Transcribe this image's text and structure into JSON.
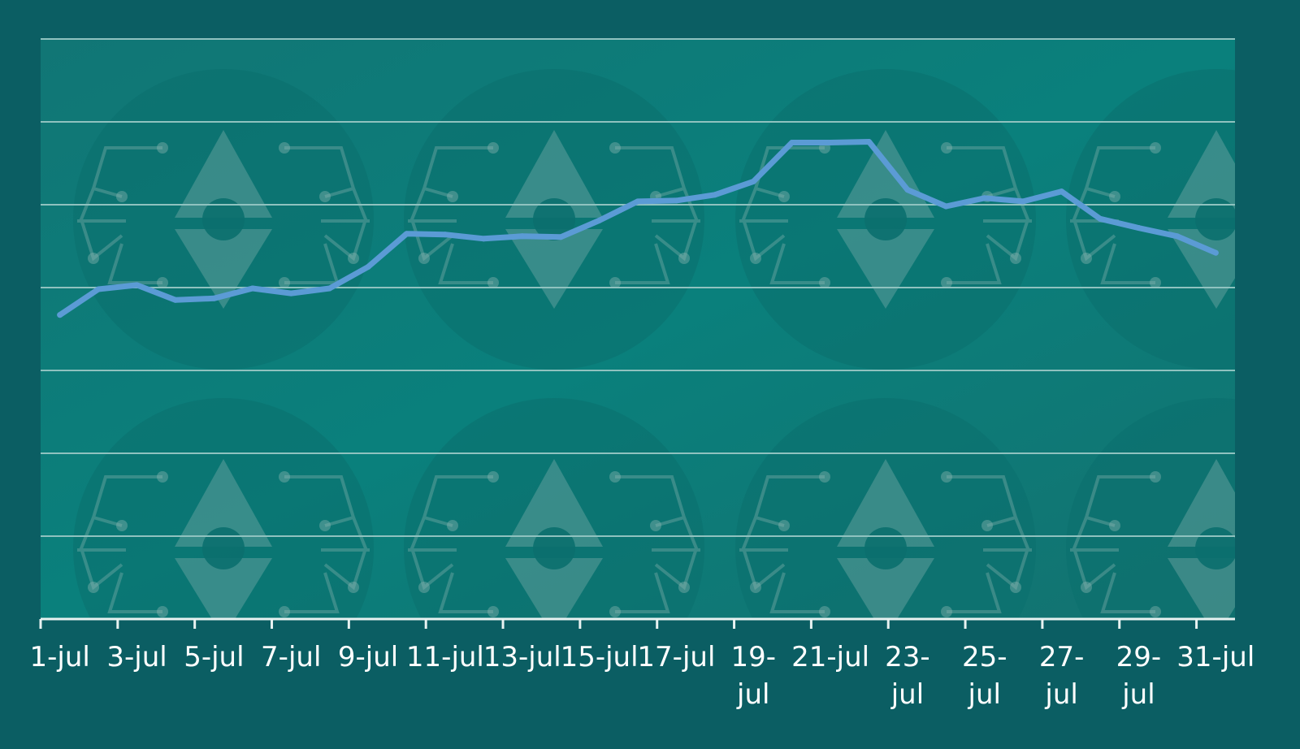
{
  "colors": {
    "frame": "#0b5e63",
    "plot_bg": "#0d7b7a",
    "gridline": "#8fc2bf",
    "axis": "#e8f2f1",
    "line": "#5b9bd5",
    "watermark": "#8fb8b4"
  },
  "watermark": {
    "icon": "gear-diamond-logo-icon"
  },
  "chart_data": {
    "type": "line",
    "title": "",
    "xlabel": "",
    "ylabel": "",
    "grid": "horizontal",
    "legend": "none",
    "ylim": [
      0,
      7
    ],
    "y_gridlines": [
      0,
      1,
      2,
      3,
      4,
      5,
      6,
      7
    ],
    "x": [
      "1-jul",
      "2-jul",
      "3-jul",
      "4-jul",
      "5-jul",
      "6-jul",
      "7-jul",
      "8-jul",
      "9-jul",
      "10-jul",
      "11-jul",
      "12-jul",
      "13-jul",
      "14-jul",
      "15-jul",
      "16-jul",
      "17-jul",
      "18-jul",
      "19-jul",
      "20-jul",
      "21-jul",
      "22-jul",
      "23-jul",
      "24-jul",
      "25-jul",
      "26-jul",
      "27-jul",
      "28-jul",
      "29-jul",
      "30-jul",
      "31-jul"
    ],
    "tick_labels": [
      {
        "index": 0,
        "lines": [
          "1-jul"
        ]
      },
      {
        "index": 2,
        "lines": [
          "3-jul"
        ]
      },
      {
        "index": 4,
        "lines": [
          "5-jul"
        ]
      },
      {
        "index": 6,
        "lines": [
          "7-jul"
        ]
      },
      {
        "index": 8,
        "lines": [
          "9-jul"
        ]
      },
      {
        "index": 10,
        "lines": [
          "11-jul"
        ]
      },
      {
        "index": 12,
        "lines": [
          "13-jul"
        ]
      },
      {
        "index": 14,
        "lines": [
          "15-jul"
        ]
      },
      {
        "index": 16,
        "lines": [
          "17-jul"
        ]
      },
      {
        "index": 18,
        "lines": [
          "19-",
          "jul"
        ]
      },
      {
        "index": 20,
        "lines": [
          "21-jul"
        ]
      },
      {
        "index": 22,
        "lines": [
          "23-",
          "jul"
        ]
      },
      {
        "index": 24,
        "lines": [
          "25-",
          "jul"
        ]
      },
      {
        "index": 26,
        "lines": [
          "27-",
          "jul"
        ]
      },
      {
        "index": 28,
        "lines": [
          "29-",
          "jul"
        ]
      },
      {
        "index": 30,
        "lines": [
          "31-jul"
        ]
      }
    ],
    "series": [
      {
        "values": [
          3.67,
          3.98,
          4.03,
          3.85,
          3.87,
          3.99,
          3.93,
          3.99,
          4.25,
          4.65,
          4.64,
          4.59,
          4.62,
          4.61,
          4.81,
          5.04,
          5.05,
          5.12,
          5.28,
          5.75,
          5.75,
          5.76,
          5.18,
          4.98,
          5.08,
          5.04,
          5.16,
          4.83,
          4.72,
          4.62,
          4.42
        ]
      }
    ]
  }
}
